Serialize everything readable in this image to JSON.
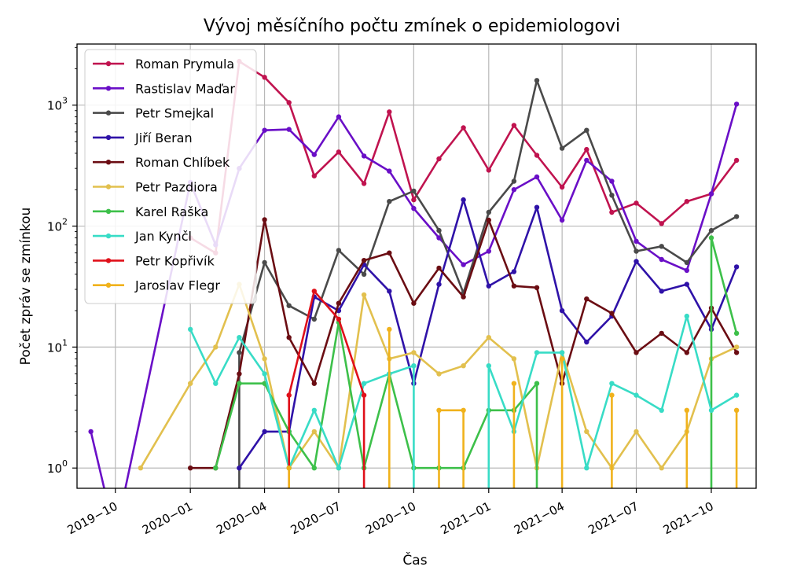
{
  "chart_data": {
    "type": "line",
    "title": "Vývoj měsíčního počtu zmínek o epidemiologovi",
    "xlabel": "Čas",
    "ylabel": "Počet zpráv se zmínkou",
    "yscale": "log",
    "ylim": [
      0.68,
      3200
    ],
    "xlim": [
      "2019-08-15",
      "2021-11-25"
    ],
    "grid": true,
    "legend_position": "top-left",
    "x_ticks": [
      "2019-10",
      "2020-01",
      "2020-04",
      "2020-07",
      "2020-10",
      "2021-01",
      "2021-04",
      "2021-07",
      "2021-10"
    ],
    "y_ticks": [
      {
        "value": 1,
        "label": "10^0"
      },
      {
        "value": 10,
        "label": "10^1"
      },
      {
        "value": 100,
        "label": "10^2"
      },
      {
        "value": 1000,
        "label": "10^3"
      }
    ],
    "series": [
      {
        "name": "Roman Prymula",
        "color": "#c0134f",
        "points": [
          [
            "2020-01",
            80
          ],
          [
            "2020-02",
            60
          ],
          [
            "2020-03",
            2300
          ],
          [
            "2020-04",
            1700
          ],
          [
            "2020-05",
            1050
          ],
          [
            "2020-06",
            260
          ],
          [
            "2020-07",
            410
          ],
          [
            "2020-08",
            225
          ],
          [
            "2020-09",
            880
          ],
          [
            "2020-10",
            165
          ],
          [
            "2020-11",
            360
          ],
          [
            "2020-12",
            650
          ],
          [
            "2021-01",
            290
          ],
          [
            "2021-02",
            680
          ],
          [
            "2021-03",
            385
          ],
          [
            "2021-04",
            210
          ],
          [
            "2021-05",
            430
          ],
          [
            "2021-06",
            130
          ],
          [
            "2021-07",
            155
          ],
          [
            "2021-08",
            105
          ],
          [
            "2021-09",
            160
          ],
          [
            "2021-10",
            185
          ],
          [
            "2021-11",
            350
          ]
        ]
      },
      {
        "name": "Rastislav Maďar",
        "color": "#6a0fc7",
        "points": [
          [
            "2019-09",
            2
          ],
          [
            "2019-10",
            0
          ],
          [
            "2020-01",
            230
          ],
          [
            "2020-02",
            70
          ],
          [
            "2020-03",
            300
          ],
          [
            "2020-04",
            620
          ],
          [
            "2020-05",
            630
          ],
          [
            "2020-06",
            390
          ],
          [
            "2020-07",
            800
          ],
          [
            "2020-08",
            380
          ],
          [
            "2020-09",
            285
          ],
          [
            "2020-10",
            140
          ],
          [
            "2020-11",
            80
          ],
          [
            "2020-12",
            48
          ],
          [
            "2021-01",
            62
          ],
          [
            "2021-02",
            200
          ],
          [
            "2021-03",
            255
          ],
          [
            "2021-04",
            112
          ],
          [
            "2021-05",
            350
          ],
          [
            "2021-06",
            235
          ],
          [
            "2021-07",
            75
          ],
          [
            "2021-08",
            53
          ],
          [
            "2021-09",
            43
          ],
          [
            "2021-10",
            185
          ],
          [
            "2021-11",
            1020
          ]
        ]
      },
      {
        "name": "Petr Smejkal",
        "color": "#4a4a4a",
        "points": [
          [
            "2020-03",
            0
          ],
          [
            "2020-03",
            9
          ],
          [
            "2020-04",
            50
          ],
          [
            "2020-05",
            22
          ],
          [
            "2020-06",
            17
          ],
          [
            "2020-07",
            63
          ],
          [
            "2020-08",
            40
          ],
          [
            "2020-09",
            160
          ],
          [
            "2020-10",
            195
          ],
          [
            "2020-11",
            92
          ],
          [
            "2020-12",
            28
          ],
          [
            "2021-01",
            130
          ],
          [
            "2021-02",
            235
          ],
          [
            "2021-03",
            1600
          ],
          [
            "2021-04",
            440
          ],
          [
            "2021-05",
            620
          ],
          [
            "2021-06",
            180
          ],
          [
            "2021-07",
            62
          ],
          [
            "2021-08",
            68
          ],
          [
            "2021-09",
            50
          ],
          [
            "2021-10",
            92
          ],
          [
            "2021-11",
            120
          ]
        ]
      },
      {
        "name": "Jiří Beran",
        "color": "#2f12a8",
        "points": [
          [
            "2020-03",
            1
          ],
          [
            "2020-04",
            2
          ],
          [
            "2020-05",
            2
          ],
          [
            "2020-06",
            26
          ],
          [
            "2020-07",
            20
          ],
          [
            "2020-08",
            48
          ],
          [
            "2020-09",
            29
          ],
          [
            "2020-10",
            5
          ],
          [
            "2020-11",
            33
          ],
          [
            "2020-12",
            165
          ],
          [
            "2021-01",
            32
          ],
          [
            "2021-02",
            42
          ],
          [
            "2021-03",
            143
          ],
          [
            "2021-04",
            20
          ],
          [
            "2021-05",
            11
          ],
          [
            "2021-06",
            18
          ],
          [
            "2021-07",
            51
          ],
          [
            "2021-08",
            29
          ],
          [
            "2021-09",
            33
          ],
          [
            "2021-10",
            14
          ],
          [
            "2021-11",
            46
          ]
        ]
      },
      {
        "name": "Roman Chlíbek",
        "color": "#6b0d13",
        "points": [
          [
            "2020-01",
            1
          ],
          [
            "2020-02",
            1
          ],
          [
            "2020-03",
            6
          ],
          [
            "2020-04",
            113
          ],
          [
            "2020-05",
            12
          ],
          [
            "2020-06",
            5
          ],
          [
            "2020-07",
            23
          ],
          [
            "2020-08",
            52
          ],
          [
            "2020-09",
            60
          ],
          [
            "2020-10",
            23
          ],
          [
            "2020-11",
            45
          ],
          [
            "2020-12",
            26
          ],
          [
            "2021-01",
            112
          ],
          [
            "2021-02",
            32
          ],
          [
            "2021-03",
            31
          ],
          [
            "2021-04",
            5
          ],
          [
            "2021-05",
            25
          ],
          [
            "2021-06",
            19
          ],
          [
            "2021-07",
            9
          ],
          [
            "2021-08",
            13
          ],
          [
            "2021-09",
            9
          ],
          [
            "2021-10",
            21
          ],
          [
            "2021-11",
            9
          ]
        ]
      },
      {
        "name": "Petr Pazdiora",
        "color": "#e2c04e",
        "points": [
          [
            "2019-11",
            1
          ],
          [
            "2020-01",
            5
          ],
          [
            "2020-02",
            10
          ],
          [
            "2020-03",
            33
          ],
          [
            "2020-04",
            8
          ],
          [
            "2020-05",
            1
          ],
          [
            "2020-06",
            2
          ],
          [
            "2020-07",
            1
          ],
          [
            "2020-08",
            27
          ],
          [
            "2020-09",
            8
          ],
          [
            "2020-10",
            9
          ],
          [
            "2020-11",
            6
          ],
          [
            "2020-12",
            7
          ],
          [
            "2021-01",
            12
          ],
          [
            "2021-02",
            8
          ],
          [
            "2021-03",
            1
          ],
          [
            "2021-04",
            9
          ],
          [
            "2021-05",
            2
          ],
          [
            "2021-06",
            1
          ],
          [
            "2021-07",
            2
          ],
          [
            "2021-08",
            1
          ],
          [
            "2021-09",
            2
          ],
          [
            "2021-10",
            8
          ],
          [
            "2021-11",
            10
          ]
        ]
      },
      {
        "name": "Karel Raška",
        "color": "#3dc04a",
        "points": [
          [
            "2020-02",
            1
          ],
          [
            "2020-03",
            5
          ],
          [
            "2020-04",
            5
          ],
          [
            "2020-05",
            2
          ],
          [
            "2020-06",
            1
          ],
          [
            "2020-07",
            16
          ],
          [
            "2020-08",
            1
          ],
          [
            "2020-09",
            6
          ],
          [
            "2020-10",
            1
          ],
          [
            "2020-11",
            1
          ],
          [
            "2020-12",
            1
          ],
          [
            "2021-01",
            3
          ],
          [
            "2021-02",
            3
          ],
          [
            "2021-03",
            5
          ],
          [
            "2021-03",
            0
          ],
          [
            "2021-10",
            0
          ],
          [
            "2021-10",
            80
          ],
          [
            "2021-11",
            13
          ]
        ]
      },
      {
        "name": "Jan Kynčl",
        "color": "#38dcc6",
        "points": [
          [
            "2020-01",
            14
          ],
          [
            "2020-02",
            5
          ],
          [
            "2020-03",
            12
          ],
          [
            "2020-04",
            6
          ],
          [
            "2020-05",
            1
          ],
          [
            "2020-06",
            3
          ],
          [
            "2020-07",
            1
          ],
          [
            "2020-08",
            5
          ],
          [
            "2020-09",
            6
          ],
          [
            "2020-10",
            7
          ],
          [
            "2020-10",
            0
          ],
          [
            "2021-01",
            0
          ],
          [
            "2021-01",
            7
          ],
          [
            "2021-02",
            2
          ],
          [
            "2021-03",
            9
          ],
          [
            "2021-04",
            9
          ],
          [
            "2021-05",
            1
          ],
          [
            "2021-06",
            5
          ],
          [
            "2021-07",
            4
          ],
          [
            "2021-08",
            3
          ],
          [
            "2021-09",
            18
          ],
          [
            "2021-10",
            3
          ],
          [
            "2021-11",
            4
          ]
        ]
      },
      {
        "name": "Petr Kopřivík",
        "color": "#e0101a",
        "points": [
          [
            "2020-05",
            0
          ],
          [
            "2020-05",
            4
          ],
          [
            "2020-06",
            29
          ],
          [
            "2020-07",
            17
          ],
          [
            "2020-08",
            4
          ],
          [
            "2020-08",
            0
          ]
        ]
      },
      {
        "name": "Jaroslav Flegr",
        "color": "#f0b21c",
        "points": [
          [
            "2020-05",
            1
          ],
          [
            "2020-05",
            0
          ],
          [
            "2020-09",
            0
          ],
          [
            "2020-09",
            14
          ],
          [
            "2020-09",
            0
          ],
          [
            "2020-11",
            0
          ],
          [
            "2020-11",
            3
          ],
          [
            "2020-12",
            3
          ],
          [
            "2020-12",
            0
          ],
          [
            "2021-02",
            0
          ],
          [
            "2021-02",
            5
          ],
          [
            "2021-02",
            0
          ],
          [
            "2021-04",
            0
          ],
          [
            "2021-04",
            8
          ],
          [
            "2021-04",
            0
          ],
          [
            "2021-06",
            0
          ],
          [
            "2021-06",
            4
          ],
          [
            "2021-06",
            0
          ],
          [
            "2021-09",
            0
          ],
          [
            "2021-09",
            3
          ],
          [
            "2021-09",
            0
          ],
          [
            "2021-11",
            0
          ],
          [
            "2021-11",
            3
          ]
        ]
      }
    ]
  }
}
